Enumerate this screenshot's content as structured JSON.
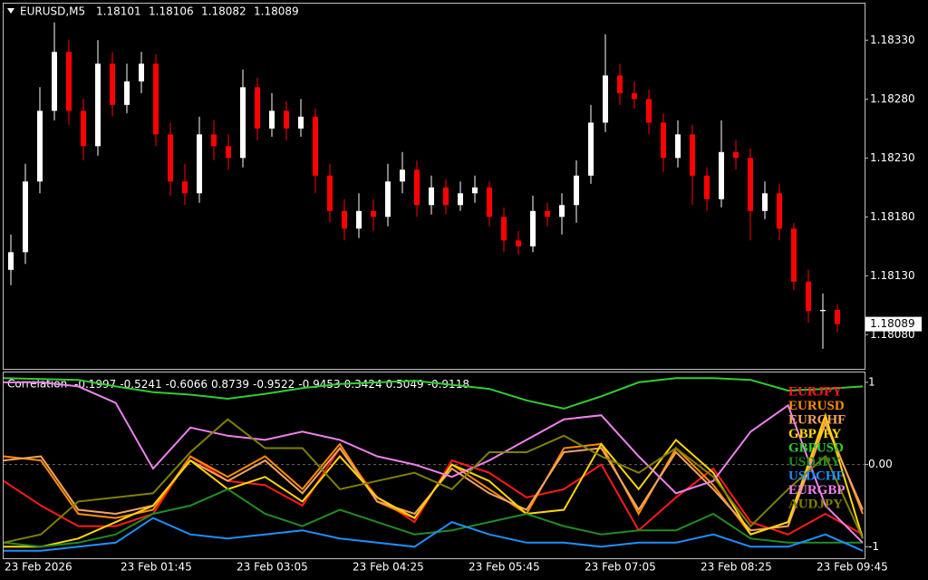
{
  "chart_data": [
    {
      "type": "candlestick",
      "title": "EURUSD,M5",
      "up_color": "#ffffff",
      "down_color": "#ff0000",
      "open": [
        1.18135,
        1.1815,
        1.1821,
        1.1827,
        1.1832,
        1.1827,
        1.1824,
        1.1831,
        1.18275,
        1.18295,
        1.1831,
        1.1825,
        1.1821,
        1.182,
        1.1825,
        1.1824,
        1.1823,
        1.1829,
        1.18255,
        1.1827,
        1.18255,
        1.18265,
        1.18215,
        1.18185,
        1.1817,
        1.18185,
        1.1818,
        1.1821,
        1.1822,
        1.1819,
        1.18205,
        1.1819,
        1.182,
        1.18205,
        1.1818,
        1.1816,
        1.18155,
        1.18185,
        1.1818,
        1.1819,
        1.18215,
        1.1826,
        1.183,
        1.18285,
        1.1828,
        1.1826,
        1.1823,
        1.1825,
        1.18215,
        1.18195,
        1.18235,
        1.1823,
        1.18185,
        1.182,
        1.1817,
        1.18125,
        1.181,
        1.18101
      ],
      "high": [
        1.18165,
        1.18225,
        1.1829,
        1.18345,
        1.1833,
        1.1828,
        1.1833,
        1.1832,
        1.1831,
        1.1832,
        1.18318,
        1.1826,
        1.18225,
        1.18265,
        1.18262,
        1.1825,
        1.18305,
        1.18298,
        1.18285,
        1.18278,
        1.1828,
        1.18272,
        1.18225,
        1.18195,
        1.182,
        1.18195,
        1.18225,
        1.18235,
        1.18228,
        1.18215,
        1.18212,
        1.1821,
        1.18215,
        1.1821,
        1.18188,
        1.18168,
        1.18198,
        1.18192,
        1.182,
        1.18228,
        1.18275,
        1.18335,
        1.1831,
        1.18295,
        1.18288,
        1.18268,
        1.18262,
        1.18258,
        1.18222,
        1.18262,
        1.18245,
        1.18238,
        1.1821,
        1.18208,
        1.18175,
        1.18135,
        1.18115,
        1.18106
      ],
      "low": [
        1.18122,
        1.1814,
        1.182,
        1.18262,
        1.18258,
        1.18228,
        1.18232,
        1.18265,
        1.18268,
        1.18285,
        1.1824,
        1.18198,
        1.1819,
        1.18192,
        1.18228,
        1.1822,
        1.18222,
        1.18245,
        1.18248,
        1.18245,
        1.18248,
        1.182,
        1.18175,
        1.1816,
        1.18162,
        1.18168,
        1.18172,
        1.182,
        1.1818,
        1.18182,
        1.18182,
        1.18185,
        1.18192,
        1.18172,
        1.1815,
        1.18148,
        1.1815,
        1.18172,
        1.18165,
        1.18175,
        1.18208,
        1.18252,
        1.18275,
        1.18272,
        1.1825,
        1.18218,
        1.18222,
        1.1819,
        1.18185,
        1.18188,
        1.1822,
        1.1816,
        1.18178,
        1.1816,
        1.18118,
        1.1809,
        1.18068,
        1.18082
      ],
      "close": [
        1.1815,
        1.1821,
        1.1827,
        1.1832,
        1.1827,
        1.1824,
        1.1831,
        1.18275,
        1.18295,
        1.1831,
        1.1825,
        1.1821,
        1.182,
        1.1825,
        1.1824,
        1.1823,
        1.1829,
        1.18255,
        1.1827,
        1.18255,
        1.18265,
        1.18215,
        1.18185,
        1.1817,
        1.18185,
        1.1818,
        1.1821,
        1.1822,
        1.1819,
        1.18205,
        1.1819,
        1.182,
        1.18205,
        1.1818,
        1.1816,
        1.18155,
        1.18185,
        1.1818,
        1.1819,
        1.18215,
        1.1826,
        1.183,
        1.18285,
        1.1828,
        1.1826,
        1.1823,
        1.1825,
        1.18215,
        1.18195,
        1.18235,
        1.1823,
        1.18185,
        1.182,
        1.1817,
        1.18125,
        1.181,
        1.18101,
        1.18089
      ],
      "ylim": [
        1.18051,
        1.18361
      ],
      "yticks": [
        {
          "value": 1.1808,
          "label": "1.18080"
        },
        {
          "value": 1.1813,
          "label": "1.18130"
        },
        {
          "value": 1.1818,
          "label": "1.18180"
        },
        {
          "value": 1.1823,
          "label": "1.18230"
        },
        {
          "value": 1.1828,
          "label": "1.18280"
        },
        {
          "value": 1.1833,
          "label": "1.18330"
        }
      ],
      "xticks": [
        "23 Feb 2026",
        "23 Feb 01:45",
        "23 Feb 03:05",
        "23 Feb 04:25",
        "23 Feb 05:45",
        "23 Feb 07:05",
        "23 Feb 08:25",
        "23 Feb 09:45"
      ]
    },
    {
      "type": "line",
      "title": "Correlation",
      "values": [
        -0.1997,
        -0.5241,
        -0.6066,
        0.8739,
        -0.9522,
        -0.9453,
        0.3424,
        0.5049,
        -0.9118
      ],
      "ylim": [
        -1.14,
        1.12
      ],
      "yticks": [
        1,
        {
          "value": 0,
          "label": "0.00"
        },
        -1
      ],
      "series": [
        {
          "name": "EURJPY",
          "color": "#ff1a1a",
          "values": [
            -0.2,
            -0.5,
            -0.75,
            -0.75,
            -0.6,
            0.1,
            -0.2,
            -0.25,
            -0.5,
            0.2,
            -0.4,
            -0.7,
            0.05,
            -0.1,
            -0.4,
            -0.3,
            0.0,
            -0.8,
            -0.4,
            -0.05,
            -0.7,
            -0.85,
            -0.6,
            -0.85
          ]
        },
        {
          "name": "EURUSD",
          "color": "#ff8c00",
          "values": [
            0.1,
            0.05,
            -0.6,
            -0.65,
            -0.55,
            0.1,
            -0.15,
            0.1,
            -0.3,
            0.25,
            -0.45,
            -0.65,
            0.0,
            -0.3,
            -0.6,
            0.2,
            0.25,
            -0.6,
            0.2,
            -0.25,
            -0.85,
            -0.7,
            0.55,
            -0.6
          ]
        },
        {
          "name": "EURCHF",
          "color": "#f4a460",
          "values": [
            0.05,
            0.1,
            -0.55,
            -0.6,
            -0.5,
            0.05,
            -0.2,
            0.05,
            -0.35,
            0.2,
            -0.45,
            -0.6,
            -0.05,
            -0.35,
            -0.55,
            0.15,
            0.2,
            -0.55,
            0.15,
            -0.3,
            -0.8,
            -0.75,
            0.5,
            -0.55
          ]
        },
        {
          "name": "GBPJPY",
          "color": "#ffd700",
          "values": [
            -1.0,
            -1.0,
            -0.9,
            -0.7,
            -0.5,
            0.05,
            -0.3,
            -0.15,
            -0.45,
            0.1,
            -0.4,
            -0.65,
            0.0,
            -0.2,
            -0.6,
            -0.55,
            0.25,
            -0.3,
            0.3,
            -0.1,
            -0.85,
            -0.7,
            0.6,
            -0.9
          ]
        },
        {
          "name": "GBPUSD",
          "color": "#32cd32",
          "values": [
            1.05,
            1.04,
            1.03,
            0.95,
            0.88,
            0.85,
            0.8,
            0.86,
            0.93,
            0.98,
            1.0,
            1.02,
            0.97,
            0.92,
            0.78,
            0.68,
            0.83,
            1.0,
            1.05,
            1.05,
            1.03,
            0.9,
            0.92,
            0.95
          ]
        },
        {
          "name": "USDJPY",
          "color": "#228b22",
          "values": [
            -0.95,
            -1.0,
            -0.95,
            -0.85,
            -0.6,
            -0.5,
            -0.3,
            -0.6,
            -0.75,
            -0.55,
            -0.7,
            -0.85,
            -0.8,
            -0.7,
            -0.6,
            -0.75,
            -0.85,
            -0.8,
            -0.8,
            -0.6,
            -0.9,
            -0.95,
            -0.95,
            -0.95
          ]
        },
        {
          "name": "USDCHF",
          "color": "#1e90ff",
          "values": [
            -1.05,
            -1.05,
            -1.0,
            -0.95,
            -0.65,
            -0.85,
            -0.9,
            -0.85,
            -0.8,
            -0.9,
            -0.95,
            -1.0,
            -0.7,
            -0.85,
            -0.95,
            -0.95,
            -1.0,
            -0.95,
            -0.95,
            -0.85,
            -1.0,
            -1.0,
            -0.85,
            -1.05
          ]
        },
        {
          "name": "EURGBP",
          "color": "#ee82ee",
          "values": [
            1.0,
            1.0,
            0.95,
            0.75,
            -0.05,
            0.45,
            0.35,
            0.3,
            0.4,
            0.3,
            0.1,
            0.0,
            -0.15,
            0.05,
            0.3,
            0.55,
            0.6,
            0.1,
            -0.35,
            -0.2,
            0.4,
            0.72,
            -0.5,
            -0.95
          ]
        },
        {
          "name": "AUDJPY",
          "color": "#808000",
          "values": [
            -0.95,
            -0.85,
            -0.45,
            -0.4,
            -0.35,
            0.15,
            0.55,
            0.2,
            0.2,
            -0.3,
            -0.2,
            -0.1,
            -0.3,
            0.15,
            0.15,
            0.35,
            0.1,
            -0.1,
            0.2,
            -0.15,
            -0.75,
            -0.3,
            0.1,
            -0.9
          ]
        }
      ]
    }
  ]
}
